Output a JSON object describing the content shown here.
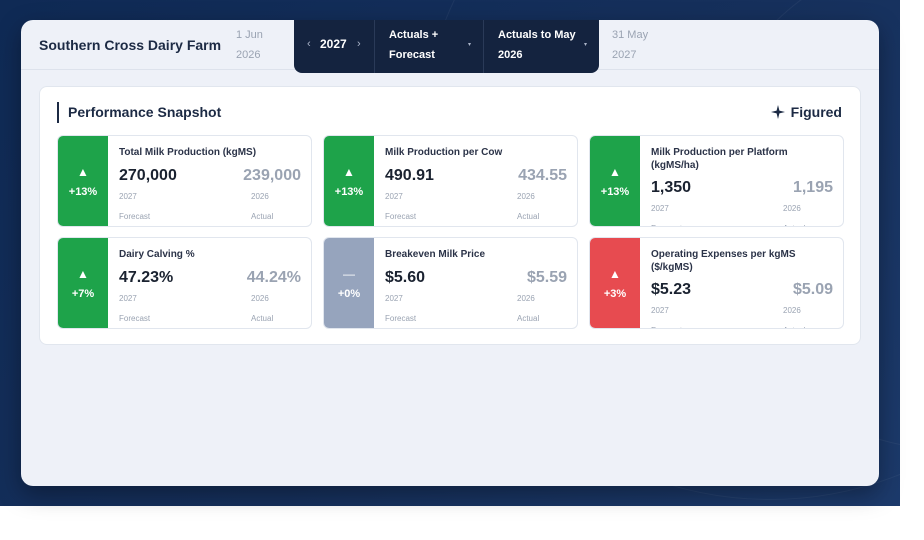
{
  "header": {
    "farm_name": "Southern Cross Dairy Farm",
    "period_start": "1 Jun 2026",
    "period_end": "31 May 2027",
    "year": "2027",
    "year_prev_arrow": "‹",
    "year_next_arrow": "›",
    "view_mode": "Actuals + Forecast",
    "actuals_to": "Actuals to May 2026",
    "caret": "▾"
  },
  "panel": {
    "title": "Performance Snapshot",
    "brand": "Figured",
    "brand_icon": "sparkle-icon"
  },
  "colors": {
    "up": "#1ea34a",
    "down": "#e74b50",
    "flat": "#96a4bd",
    "navy": "#14233f"
  },
  "cards": [
    {
      "metric": "Total Milk Production (kgMS)",
      "trend": "up",
      "change": "+13%",
      "forecast_value": "270,000",
      "forecast_year": "2027",
      "forecast_label": "Forecast",
      "actual_value": "239,000",
      "actual_year": "2026",
      "actual_label": "Actual"
    },
    {
      "metric": "Milk Production per Cow",
      "trend": "up",
      "change": "+13%",
      "forecast_value": "490.91",
      "forecast_year": "2027",
      "forecast_label": "Forecast",
      "actual_value": "434.55",
      "actual_year": "2026",
      "actual_label": "Actual"
    },
    {
      "metric": "Milk Production per Platform (kgMS/ha)",
      "trend": "up",
      "change": "+13%",
      "forecast_value": "1,350",
      "forecast_year": "2027",
      "forecast_label": "Forecast",
      "actual_value": "1,195",
      "actual_year": "2026",
      "actual_label": "Actual"
    },
    {
      "metric": "Dairy Calving %",
      "trend": "up",
      "change": "+7%",
      "forecast_value": "47.23%",
      "forecast_year": "2027",
      "forecast_label": "Forecast",
      "actual_value": "44.24%",
      "actual_year": "2026",
      "actual_label": "Actual"
    },
    {
      "metric": "Breakeven Milk Price",
      "trend": "flat",
      "change": "+0%",
      "forecast_value": "$5.60",
      "forecast_year": "2027",
      "forecast_label": "Forecast",
      "actual_value": "$5.59",
      "actual_year": "2026",
      "actual_label": "Actual"
    },
    {
      "metric": "Operating Expenses per kgMS ($/kgMS)",
      "trend": "down",
      "change": "+3%",
      "forecast_value": "$5.23",
      "forecast_year": "2027",
      "forecast_label": "Forecast",
      "actual_value": "$5.09",
      "actual_year": "2026",
      "actual_label": "Actual"
    }
  ]
}
